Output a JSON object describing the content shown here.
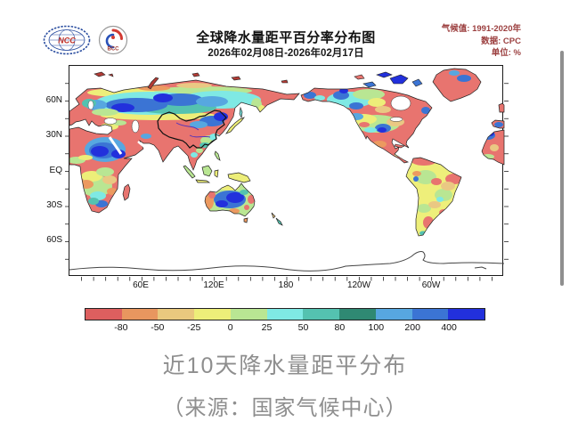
{
  "header": {
    "title": "全球降水量距平百分率分布图",
    "subtitle": "2026年02月08日-2026年02月17日",
    "meta_line1": "气候值: 1991-2020年",
    "meta_line2": "数据: CPC",
    "meta_line3": "单位: %",
    "meta_color": "#9c4040",
    "logo_ncc_label": "NCC",
    "logo_bcc_label": "BCC"
  },
  "map": {
    "lat_labels": [
      "60N",
      "30N",
      "EQ",
      "30S",
      "60S"
    ],
    "lon_labels": [
      "60E",
      "120E",
      "180",
      "120W",
      "60W"
    ]
  },
  "colorbar": {
    "boundary_labels": [
      "-80",
      "-50",
      "-25",
      "0",
      "25",
      "50",
      "80",
      "100",
      "200",
      "400"
    ],
    "colors": [
      "#DD5F5F",
      "#E8965F",
      "#E9C87E",
      "#EDEE79",
      "#B9E693",
      "#7FE9E4",
      "#54C2B0",
      "#2F8973",
      "#57A7E0",
      "#3B74D4",
      "#2230DC"
    ]
  },
  "caption": {
    "line1": "近10天降水量距平分布",
    "line2": "（来源：国家气候中心）"
  },
  "chart_data": {
    "type": "heatmap",
    "subtype": "global precipitation anomaly percentage map",
    "title": "全球降水量距平百分率分布图",
    "period": "2026年02月08日-2026年02月17日",
    "climatology_reference": "1991-2020年",
    "data_source": "CPC",
    "unit": "%",
    "projection": "equirectangular, longitude 0E-360E (Pacific-centered), latitude 90N-90S",
    "lat_ticks": [
      "60N",
      "30N",
      "EQ",
      "30S",
      "60S"
    ],
    "lon_ticks": [
      "60E",
      "120E",
      "180",
      "120W",
      "60W"
    ],
    "scale_boundaries": [
      -80,
      -50,
      -25,
      0,
      25,
      50,
      80,
      100,
      200,
      400
    ],
    "scale_colors": [
      "#DD5F5F",
      "#E8965F",
      "#E9C87E",
      "#EDEE79",
      "#B9E693",
      "#7FE9E4",
      "#54C2B0",
      "#2F8973",
      "#57A7E0",
      "#3B74D4",
      "#2230DC"
    ],
    "legend_position": "bottom",
    "notable_features": [
      "大范围负距平(红色, <-50%): 撒哈拉与北非、格陵兰、蒙古高原至中亚、印度、墨西哥、东加拿大",
      "西伯利亚中部呈东西向大范围正距平带(蓝色, >100%)",
      "阿拉伯半岛至东北非出现强正距平中心(深蓝, >200%)",
      "中国东北部有正距平斑块, 西部以负距平为主, 国界以黑线勾出",
      "澳大利亚内陆大片正距平(蓝色), 西岸及东缘偏旱",
      "北美中部为正负相间的混合分布, 南美以0~50%弱距平为主",
      "南极洲仅示海岸线, 无数据填色"
    ]
  }
}
